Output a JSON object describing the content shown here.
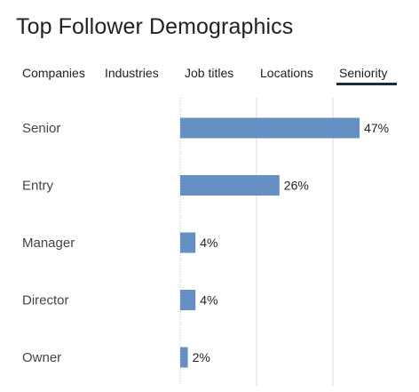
{
  "header": {
    "title": "Top Follower Demographics"
  },
  "tabs": [
    {
      "label": "Companies",
      "selected": false
    },
    {
      "label": "Industries",
      "selected": false
    },
    {
      "label": "Job titles",
      "selected": false
    },
    {
      "label": "Locations",
      "selected": false
    },
    {
      "label": "Seniority",
      "selected": true
    }
  ],
  "colors": {
    "bar": "#6690c4",
    "tab_underline": "#1d2a3b",
    "gridline": "#dcdcdc",
    "axis": "#bbbbbb"
  },
  "chart_data": {
    "type": "bar",
    "orientation": "horizontal",
    "categories": [
      "Senior",
      "Entry",
      "Manager",
      "Director",
      "Owner"
    ],
    "values": [
      47,
      26,
      4,
      4,
      2
    ],
    "value_labels": [
      "47%",
      "26%",
      "4%",
      "4%",
      "2%"
    ],
    "unit": "%",
    "xlim": [
      0,
      50
    ],
    "grid": true
  }
}
